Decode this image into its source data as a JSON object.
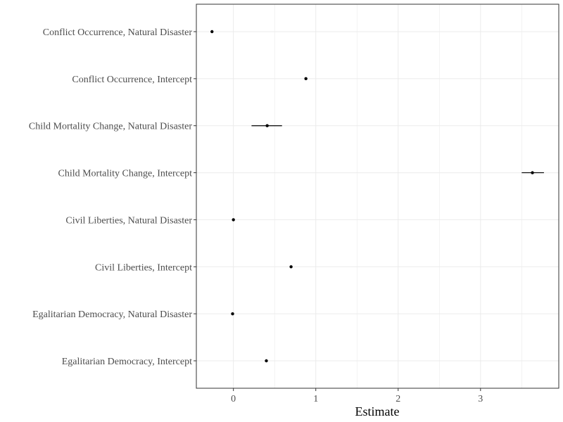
{
  "chart_data": {
    "type": "scatter",
    "title": "",
    "xlabel": "Estimate",
    "ylabel": "",
    "xlim": [
      -0.45,
      3.95
    ],
    "x_ticks": [
      0,
      1,
      2,
      3
    ],
    "x_tick_labels": [
      "0",
      "1",
      "2",
      "3"
    ],
    "grid": true,
    "categories": [
      "Conflict Occurrence, Natural Disaster",
      "Conflict Occurrence, Intercept",
      "Child Mortality Change, Natural Disaster",
      "Child Mortality Change, Intercept",
      "Civil Liberties, Natural Disaster",
      "Civil Liberties, Intercept",
      "Egalitarian Democracy, Natural Disaster",
      "Egalitarian Democracy, Intercept"
    ],
    "points": [
      {
        "estimate": -0.26,
        "ci_low": -0.27,
        "ci_high": -0.25
      },
      {
        "estimate": 0.88,
        "ci_low": 0.87,
        "ci_high": 0.89
      },
      {
        "estimate": 0.41,
        "ci_low": 0.22,
        "ci_high": 0.59
      },
      {
        "estimate": 3.63,
        "ci_low": 3.5,
        "ci_high": 3.77
      },
      {
        "estimate": 0.0,
        "ci_low": -0.01,
        "ci_high": 0.01
      },
      {
        "estimate": 0.7,
        "ci_low": 0.69,
        "ci_high": 0.71
      },
      {
        "estimate": -0.01,
        "ci_low": -0.02,
        "ci_high": 0.0
      },
      {
        "estimate": 0.4,
        "ci_low": 0.39,
        "ci_high": 0.41
      }
    ],
    "colors": {
      "point": "#000000",
      "grid": "#ebebeb",
      "panel_border": "#333333",
      "tick_label": "#4d4d4d"
    }
  }
}
